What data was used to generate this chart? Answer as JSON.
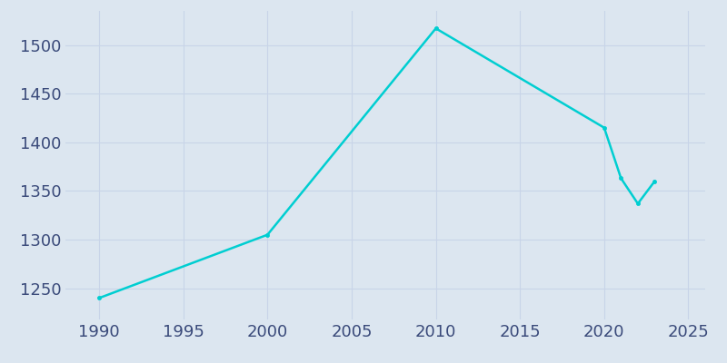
{
  "years": [
    1990,
    2000,
    2010,
    2020,
    2021,
    2022,
    2023
  ],
  "population": [
    1240,
    1305,
    1517,
    1415,
    1363,
    1337,
    1360
  ],
  "line_color": "#00CED1",
  "marker": "o",
  "marker_size": 3,
  "bg_color": "#dce6f0",
  "plot_bg_color": "#dce6f0",
  "fig_bg_color": "#dce6f0",
  "xlim": [
    1988,
    2026
  ],
  "ylim": [
    1218,
    1535
  ],
  "xticks": [
    1990,
    1995,
    2000,
    2005,
    2010,
    2015,
    2020,
    2025
  ],
  "yticks": [
    1250,
    1300,
    1350,
    1400,
    1450,
    1500
  ],
  "grid_color": "#c8d4e8",
  "tick_label_color": "#3a4a7a",
  "tick_fontsize": 13,
  "line_width": 1.8
}
